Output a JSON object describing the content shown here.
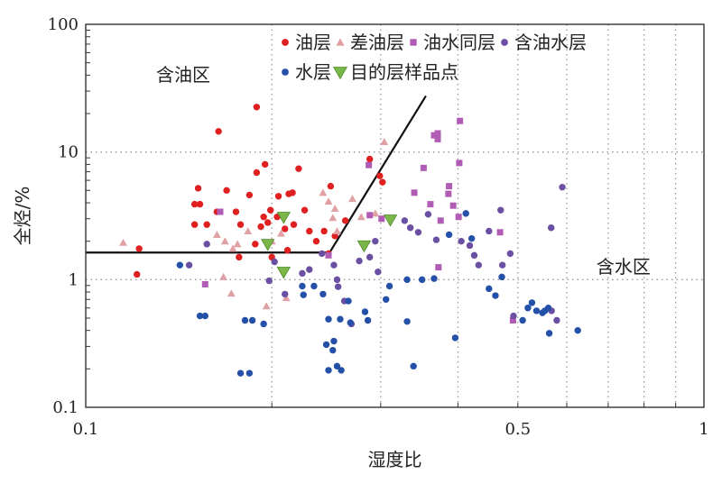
{
  "chart_data": {
    "type": "scatter",
    "xlabel": "湿度比",
    "ylabel": "全烃/%",
    "x_scale": "log",
    "y_scale": "log",
    "xlim": [
      0.1,
      1
    ],
    "ylim": [
      0.1,
      100
    ],
    "x_ticks": [
      {
        "value": 0.1,
        "label": "0.1"
      },
      {
        "value": 0.5,
        "label": "0.5"
      },
      {
        "value": 1,
        "label": "1"
      }
    ],
    "y_ticks": [
      {
        "value": 0.1,
        "label": "0.1"
      },
      {
        "value": 1,
        "label": "1"
      },
      {
        "value": 10,
        "label": "10"
      },
      {
        "value": 100,
        "label": "100"
      }
    ],
    "x_grid": [
      0.2,
      0.3,
      0.4,
      0.5,
      0.6,
      0.7,
      0.8,
      0.9
    ],
    "y_grid": [
      1,
      10
    ],
    "grid": true,
    "legend_position": "top-right",
    "annotations": [
      {
        "text": "含油区",
        "x": 0.13,
        "y": 36
      },
      {
        "text": "含水区",
        "x": 0.67,
        "y": 1.13
      }
    ],
    "boundary_line": {
      "points": [
        [
          0.1,
          1.63
        ],
        [
          0.248,
          1.63
        ],
        [
          0.355,
          27.5
        ]
      ]
    },
    "colors": {
      "oil": "#e02020",
      "poor_oil": "#e0a0a4",
      "oil_water": "#b05cb5",
      "water_bearing_oil": "#6a4fa3",
      "water": "#2450a8",
      "target": "#7ab648"
    },
    "series": [
      {
        "name": "油层",
        "marker": "circle",
        "color": "#e02020",
        "points": [
          [
            0.152,
            5.2
          ],
          [
            0.15,
            3.9
          ],
          [
            0.153,
            3.9
          ],
          [
            0.15,
            2.7
          ],
          [
            0.157,
            2.7
          ],
          [
            0.164,
            14.5
          ],
          [
            0.163,
            3.4
          ],
          [
            0.175,
            3.4
          ],
          [
            0.178,
            2.7
          ],
          [
            0.184,
            4.6
          ],
          [
            0.189,
            22.5
          ],
          [
            0.189,
            6.9
          ],
          [
            0.195,
            8.0
          ],
          [
            0.194,
            3.1
          ],
          [
            0.197,
            2.8
          ],
          [
            0.204,
            3.1
          ],
          [
            0.21,
            2.5
          ],
          [
            0.212,
            1.7
          ],
          [
            0.205,
            4.5
          ],
          [
            0.213,
            4.7
          ],
          [
            0.216,
            4.8
          ],
          [
            0.221,
            7.4
          ],
          [
            0.226,
            3.5
          ],
          [
            0.217,
            2.7
          ],
          [
            0.23,
            2.4
          ],
          [
            0.236,
            2.0
          ],
          [
            0.243,
            2.4
          ],
          [
            0.249,
            5.4
          ],
          [
            0.253,
            2.2
          ],
          [
            0.263,
            2.9
          ],
          [
            0.192,
            2.6
          ],
          [
            0.2,
            1.5
          ],
          [
            0.188,
            1.9
          ],
          [
            0.177,
            1.5
          ],
          [
            0.122,
            1.75
          ],
          [
            0.121,
            1.1
          ],
          [
            0.247,
            1.6
          ],
          [
            0.288,
            8.8
          ],
          [
            0.299,
            6.5
          ],
          [
            0.302,
            5.8
          ],
          [
            0.169,
            5.0
          ],
          [
            0.199,
            3.5
          ]
        ]
      },
      {
        "name": "差油层",
        "marker": "triangle",
        "color": "#e0a0a4",
        "points": [
          [
            0.115,
            1.95
          ],
          [
            0.163,
            2.25
          ],
          [
            0.167,
            1.05
          ],
          [
            0.168,
            2.0
          ],
          [
            0.172,
            0.78
          ],
          [
            0.173,
            1.75
          ],
          [
            0.196,
            0.62
          ],
          [
            0.2,
            2.0
          ],
          [
            0.207,
            2.3
          ],
          [
            0.211,
            0.72
          ],
          [
            0.242,
            4.8
          ],
          [
            0.247,
            4.1
          ],
          [
            0.251,
            3.05
          ],
          [
            0.253,
            3.6
          ],
          [
            0.255,
            2.4
          ],
          [
            0.27,
            4.3
          ],
          [
            0.279,
            3.1
          ],
          [
            0.294,
            3.3
          ],
          [
            0.304,
            12.0
          ],
          [
            0.176,
            1.9
          ],
          [
            0.183,
            2.4
          ]
        ]
      },
      {
        "name": "油水同层",
        "marker": "square",
        "color": "#b05cb5",
        "points": [
          [
            0.156,
            0.92
          ],
          [
            0.165,
            3.4
          ],
          [
            0.247,
            1.55
          ],
          [
            0.287,
            7.9
          ],
          [
            0.288,
            3.2
          ],
          [
            0.301,
            3.0
          ],
          [
            0.34,
            4.8
          ],
          [
            0.352,
            7.5
          ],
          [
            0.361,
            3.9
          ],
          [
            0.366,
            13.5
          ],
          [
            0.371,
            14.0
          ],
          [
            0.371,
            12.6
          ],
          [
            0.372,
            1.25
          ],
          [
            0.386,
            4.7
          ],
          [
            0.387,
            5.4
          ],
          [
            0.393,
            3.8
          ],
          [
            0.401,
            3.1
          ],
          [
            0.402,
            8.2
          ],
          [
            0.403,
            17.5
          ],
          [
            0.468,
            2.35
          ],
          [
            0.491,
            0.48
          ],
          [
            0.375,
            2.9
          ]
        ]
      },
      {
        "name": "含油水层",
        "marker": "circle",
        "color": "#6a4fa3",
        "points": [
          [
            0.147,
            1.3
          ],
          [
            0.157,
            1.9
          ],
          [
            0.198,
            0.98
          ],
          [
            0.202,
            1.38
          ],
          [
            0.21,
            0.77
          ],
          [
            0.224,
            1.12
          ],
          [
            0.23,
            1.2
          ],
          [
            0.241,
            1.6
          ],
          [
            0.252,
            1.3
          ],
          [
            0.255,
            1.0
          ],
          [
            0.262,
            0.68
          ],
          [
            0.269,
            0.45
          ],
          [
            0.277,
            1.4
          ],
          [
            0.288,
            1.5
          ],
          [
            0.294,
            2.0
          ],
          [
            0.297,
            1.15
          ],
          [
            0.328,
            2.9
          ],
          [
            0.335,
            2.55
          ],
          [
            0.345,
            2.35
          ],
          [
            0.358,
            3.25
          ],
          [
            0.369,
            2.05
          ],
          [
            0.405,
            2.0
          ],
          [
            0.418,
            1.85
          ],
          [
            0.425,
            1.55
          ],
          [
            0.432,
            1.3
          ],
          [
            0.449,
            2.4
          ],
          [
            0.469,
            3.5
          ],
          [
            0.472,
            1.3
          ],
          [
            0.486,
            1.6
          ],
          [
            0.492,
            0.52
          ],
          [
            0.566,
            2.55
          ],
          [
            0.578,
            0.48
          ],
          [
            0.59,
            5.3
          ],
          [
            0.567,
            0.57
          ],
          [
            0.256,
            0.88
          ]
        ]
      },
      {
        "name": "水层",
        "marker": "circle",
        "color": "#2450a8",
        "points": [
          [
            0.142,
            1.3
          ],
          [
            0.153,
            0.52
          ],
          [
            0.156,
            0.52
          ],
          [
            0.178,
            0.185
          ],
          [
            0.184,
            0.185
          ],
          [
            0.181,
            0.48
          ],
          [
            0.186,
            0.48
          ],
          [
            0.194,
            0.45
          ],
          [
            0.224,
            0.89
          ],
          [
            0.225,
            0.76
          ],
          [
            0.234,
            0.89
          ],
          [
            0.242,
            0.77
          ],
          [
            0.245,
            0.31
          ],
          [
            0.247,
            0.49
          ],
          [
            0.247,
            0.195
          ],
          [
            0.251,
            0.28
          ],
          [
            0.252,
            0.33
          ],
          [
            0.255,
            0.21
          ],
          [
            0.258,
            0.49
          ],
          [
            0.259,
            0.195
          ],
          [
            0.266,
            0.68
          ],
          [
            0.268,
            0.46
          ],
          [
            0.283,
            0.56
          ],
          [
            0.286,
            0.48
          ],
          [
            0.306,
            0.7
          ],
          [
            0.31,
            0.89
          ],
          [
            0.331,
            0.47
          ],
          [
            0.339,
            0.21
          ],
          [
            0.35,
            1.0
          ],
          [
            0.366,
            1.02
          ],
          [
            0.396,
            0.35
          ],
          [
            0.412,
            3.3
          ],
          [
            0.421,
            2.1
          ],
          [
            0.449,
            0.85
          ],
          [
            0.471,
            1.05
          ],
          [
            0.509,
            0.48
          ],
          [
            0.527,
            0.66
          ],
          [
            0.536,
            0.57
          ],
          [
            0.553,
            0.57
          ],
          [
            0.56,
            0.6
          ],
          [
            0.562,
            0.38
          ],
          [
            0.625,
            0.4
          ],
          [
            0.331,
            1.0
          ],
          [
            0.387,
            2.25
          ],
          [
            0.46,
            0.75
          ],
          [
            0.519,
            0.6
          ],
          [
            0.548,
            0.55
          ]
        ]
      },
      {
        "name": "目的层样品点",
        "marker": "triangle-down",
        "color": "#7ab648",
        "points": [
          [
            0.197,
            1.9
          ],
          [
            0.209,
            3.1
          ],
          [
            0.209,
            1.15
          ],
          [
            0.282,
            1.85
          ],
          [
            0.311,
            2.95
          ]
        ]
      }
    ]
  }
}
